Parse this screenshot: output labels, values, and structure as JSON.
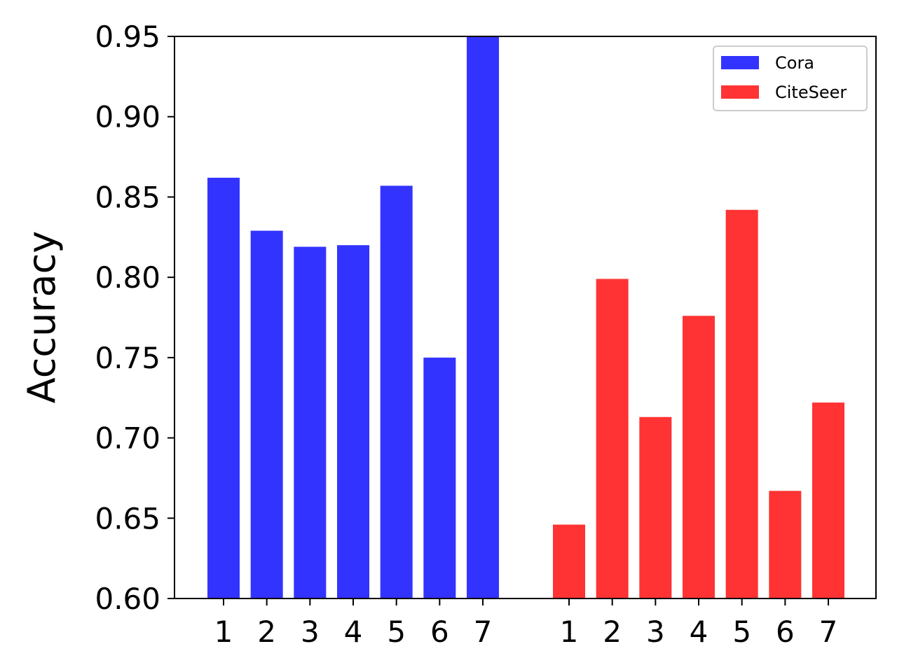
{
  "chart_data": {
    "type": "bar",
    "title": "",
    "xlabel": "",
    "ylabel": "Accuracy",
    "ylim": [
      0.6,
      0.95
    ],
    "yticks": [
      "0.60",
      "0.65",
      "0.70",
      "0.75",
      "0.80",
      "0.85",
      "0.90",
      "0.95"
    ],
    "grid": false,
    "legend_position": "top-right",
    "series": [
      {
        "name": "Cora",
        "color": "#3333ff",
        "categories": [
          "1",
          "2",
          "3",
          "4",
          "5",
          "6",
          "7"
        ],
        "values": [
          0.862,
          0.829,
          0.819,
          0.82,
          0.857,
          0.75,
          0.95
        ]
      },
      {
        "name": "CiteSeer",
        "color": "#ff3333",
        "categories": [
          "1",
          "2",
          "3",
          "4",
          "5",
          "6",
          "7"
        ],
        "values": [
          0.646,
          0.799,
          0.713,
          0.776,
          0.842,
          0.667,
          0.722
        ]
      }
    ]
  }
}
